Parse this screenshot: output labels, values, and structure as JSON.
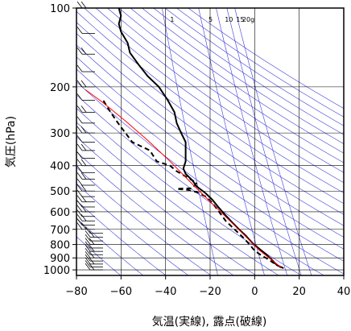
{
  "chart_data": {
    "type": "line",
    "title": "",
    "xlabel": "気温(実線), 露点(破線)",
    "ylabel": "気圧(hPa)",
    "xlim": [
      -80,
      40
    ],
    "ylim": [
      1050,
      100
    ],
    "y_scale": "log",
    "x_ticks": [
      -80,
      -60,
      -40,
      -20,
      0,
      20,
      40
    ],
    "x_tick_labels": [
      "−80",
      "−60",
      "−40",
      "−20",
      "0",
      "20",
      "40"
    ],
    "y_ticks": [
      100,
      200,
      300,
      400,
      500,
      600,
      700,
      800,
      900,
      1000
    ],
    "y_tick_labels": [
      "100",
      "200",
      "300",
      "400",
      "500",
      "600",
      "700",
      "800",
      "900",
      "1000"
    ],
    "grid": true,
    "legend": "none",
    "mixing_ratio_labels": [
      "1",
      "5",
      "10",
      "15",
      "20g"
    ],
    "mixing_ratio_values": [
      1,
      5,
      10,
      15,
      20
    ],
    "colors": {
      "frame": "#000000",
      "grid": "#000000",
      "isolines": "#3b3bdc",
      "parcel": "#ff0000",
      "temperature": "#000000",
      "dewpoint": "#000000",
      "barbs": "#000000"
    },
    "series": [
      {
        "style": "solid",
        "points": [
          [
            13,
            985
          ],
          [
            10,
            960
          ],
          [
            8,
            920
          ],
          [
            5,
            870
          ],
          [
            2,
            830
          ],
          [
            -1,
            790
          ],
          [
            -4,
            740
          ],
          [
            -7,
            700
          ],
          [
            -10,
            660
          ],
          [
            -13,
            620
          ],
          [
            -16,
            580
          ],
          [
            -19,
            540
          ],
          [
            -22,
            510
          ],
          [
            -26,
            480
          ],
          [
            -28,
            455
          ],
          [
            -31,
            430
          ],
          [
            -32,
            410
          ],
          [
            -31,
            385
          ],
          [
            -31,
            355
          ],
          [
            -31,
            325
          ],
          [
            -33,
            300
          ],
          [
            -35,
            275
          ],
          [
            -36,
            250
          ],
          [
            -39,
            225
          ],
          [
            -43,
            200
          ],
          [
            -48,
            182
          ],
          [
            -52,
            165
          ],
          [
            -56,
            148
          ],
          [
            -57,
            136
          ],
          [
            -60,
            123
          ],
          [
            -61,
            115
          ],
          [
            -60,
            107
          ],
          [
            -61,
            100
          ]
        ]
      },
      {
        "style": "dashed",
        "points": [
          [
            12,
            980
          ],
          [
            8,
            935
          ],
          [
            5,
            900
          ],
          [
            3,
            880
          ],
          [
            0,
            845
          ],
          [
            -2,
            805
          ],
          [
            -5,
            755
          ],
          [
            -9,
            700
          ],
          [
            -13,
            650
          ],
          [
            -16,
            600
          ],
          [
            -19,
            555
          ],
          [
            -22,
            525
          ],
          [
            -26,
            505
          ],
          [
            -30,
            495
          ],
          [
            -35,
            490
          ],
          [
            -28,
            488
          ],
          [
            -26,
            465
          ],
          [
            -30,
            445
          ],
          [
            -35,
            420
          ],
          [
            -38,
            400
          ],
          [
            -44,
            385
          ],
          [
            -47,
            350
          ],
          [
            -55,
            325
          ],
          [
            -58,
            300
          ],
          [
            -60,
            285
          ],
          [
            -62,
            270
          ],
          [
            -64,
            255
          ],
          [
            -66,
            240
          ],
          [
            -68,
            225
          ]
        ]
      },
      {
        "style": "parcel",
        "points": [
          [
            12,
            980
          ],
          [
            2,
            840
          ],
          [
            -8,
            690
          ],
          [
            -18,
            570
          ],
          [
            -28,
            470
          ],
          [
            -38,
            385
          ],
          [
            -48,
            320
          ],
          [
            -58,
            270
          ],
          [
            -68,
            230
          ],
          [
            -76,
            205
          ]
        ]
      }
    ],
    "wind_barbs_pressures": [
      1000,
      975,
      950,
      925,
      900,
      875,
      850,
      825,
      800,
      775,
      750,
      725,
      700,
      675,
      650,
      625,
      600,
      575,
      550,
      525,
      500,
      475,
      450,
      425,
      400,
      375,
      350,
      325,
      300,
      275,
      250,
      225,
      200,
      175,
      150,
      125,
      100
    ]
  }
}
